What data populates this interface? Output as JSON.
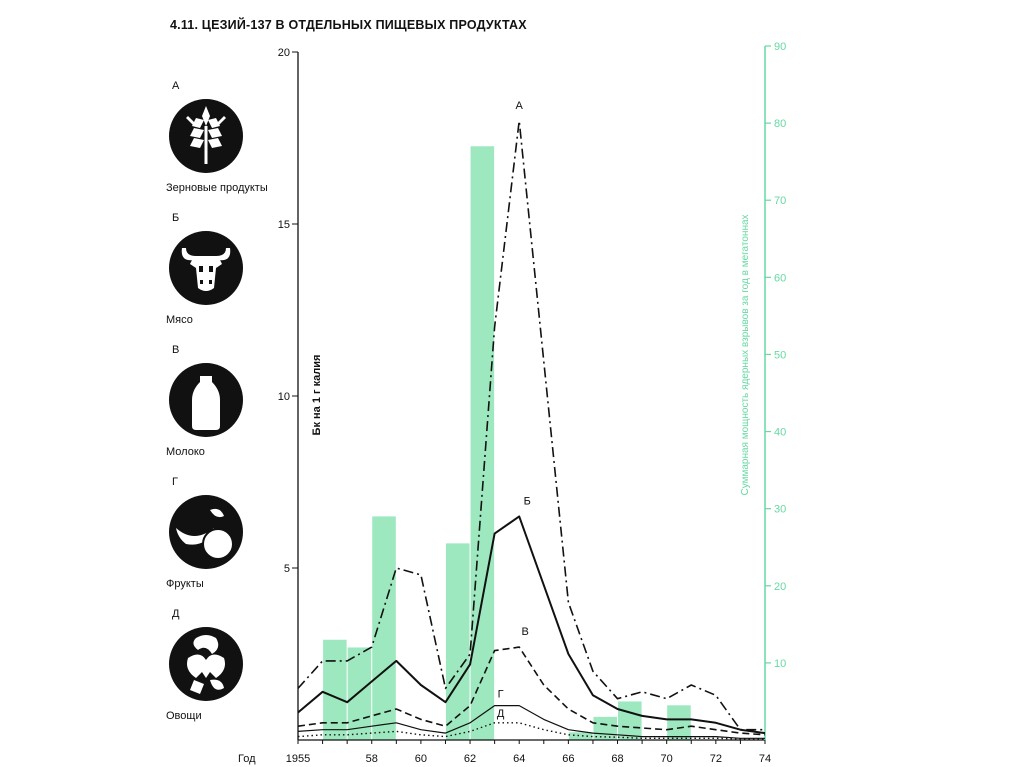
{
  "title": "4.11. ЦЕЗИЙ-137 В ОТДЕЛЬНЫХ ПИЩЕВЫХ ПРОДУКТАХ",
  "legend": [
    {
      "letter": "А",
      "label": "Зерновые продукты",
      "icon": "wheat-icon"
    },
    {
      "letter": "Б",
      "label": "Мясо",
      "icon": "cow-head-icon"
    },
    {
      "letter": "В",
      "label": "Молоко",
      "icon": "milk-bottle-icon"
    },
    {
      "letter": "Г",
      "label": "Фрукты",
      "icon": "fruit-icon"
    },
    {
      "letter": "Д",
      "label": "Овощи",
      "icon": "vegetables-icon"
    }
  ],
  "chart_data": {
    "type": "line",
    "ylabel": "Бк на 1 г калия",
    "y2label": "Суммарная мощность ядерных взрывов за год в мегатоннах",
    "xlabel": "Год",
    "ylim": [
      0,
      20
    ],
    "y2lim": [
      0,
      90
    ],
    "xlim": [
      1955,
      1974
    ],
    "x_ticks": [
      {
        "value": 1955,
        "label": "1955"
      },
      {
        "value": 1958,
        "label": "58"
      },
      {
        "value": 1960,
        "label": "60"
      },
      {
        "value": 1962,
        "label": "62"
      },
      {
        "value": 1964,
        "label": "64"
      },
      {
        "value": 1966,
        "label": "66"
      },
      {
        "value": 1968,
        "label": "68"
      },
      {
        "value": 1970,
        "label": "70"
      },
      {
        "value": 1972,
        "label": "72"
      },
      {
        "value": 1974,
        "label": "74"
      }
    ],
    "y_ticks": [
      5,
      10,
      15,
      20
    ],
    "y2_ticks": [
      10,
      20,
      30,
      40,
      50,
      60,
      70,
      80,
      90
    ],
    "bars": {
      "color": "#9ee8c0",
      "axis": "right",
      "data": [
        {
          "x": 1956.5,
          "value": 13
        },
        {
          "x": 1957.5,
          "value": 12
        },
        {
          "x": 1958.5,
          "value": 29
        },
        {
          "x": 1961.5,
          "value": 25.5
        },
        {
          "x": 1962.5,
          "value": 77
        },
        {
          "x": 1966.5,
          "value": 1
        },
        {
          "x": 1967.5,
          "value": 3
        },
        {
          "x": 1968.5,
          "value": 5
        },
        {
          "x": 1970.5,
          "value": 4.5
        }
      ]
    },
    "series": [
      {
        "name": "А",
        "style": "dashdot",
        "x": [
          1955,
          1956,
          1957,
          1958,
          1959,
          1960,
          1961,
          1962,
          1963,
          1964,
          1965,
          1966,
          1967,
          1968,
          1969,
          1970,
          1971,
          1972,
          1973,
          1974
        ],
        "y": [
          1.5,
          2.3,
          2.3,
          2.7,
          5.0,
          4.8,
          1.5,
          2.5,
          12.0,
          18.0,
          11.0,
          4.0,
          2.0,
          1.2,
          1.4,
          1.2,
          1.6,
          1.3,
          0.3,
          0.3
        ]
      },
      {
        "name": "Б",
        "style": "solid",
        "x": [
          1955,
          1956,
          1957,
          1958,
          1959,
          1960,
          1961,
          1962,
          1963,
          1964,
          1965,
          1966,
          1967,
          1968,
          1969,
          1970,
          1971,
          1972,
          1973,
          1974
        ],
        "y": [
          0.8,
          1.4,
          1.1,
          1.7,
          2.3,
          1.6,
          1.1,
          2.2,
          6.0,
          6.5,
          4.5,
          2.5,
          1.3,
          0.9,
          0.7,
          0.6,
          0.6,
          0.5,
          0.3,
          0.2
        ]
      },
      {
        "name": "В",
        "style": "dashed",
        "x": [
          1955,
          1956,
          1957,
          1958,
          1959,
          1960,
          1961,
          1962,
          1963,
          1964,
          1965,
          1966,
          1967,
          1968,
          1969,
          1970,
          1971,
          1972,
          1973,
          1974
        ],
        "y": [
          0.4,
          0.5,
          0.5,
          0.7,
          0.9,
          0.6,
          0.4,
          1.0,
          2.6,
          2.7,
          1.6,
          0.9,
          0.5,
          0.4,
          0.35,
          0.3,
          0.4,
          0.3,
          0.2,
          0.15
        ]
      },
      {
        "name": "Г",
        "style": "solid-thin",
        "x": [
          1955,
          1956,
          1957,
          1958,
          1959,
          1960,
          1961,
          1962,
          1963,
          1964,
          1965,
          1966,
          1967,
          1968,
          1969,
          1970,
          1971,
          1972,
          1973,
          1974
        ],
        "y": [
          0.25,
          0.3,
          0.3,
          0.4,
          0.5,
          0.3,
          0.2,
          0.5,
          1.0,
          1.0,
          0.6,
          0.3,
          0.2,
          0.15,
          0.1,
          0.1,
          0.1,
          0.1,
          0.05,
          0.05
        ]
      },
      {
        "name": "Д",
        "style": "dotted",
        "x": [
          1955,
          1956,
          1957,
          1958,
          1959,
          1960,
          1961,
          1962,
          1963,
          1964,
          1965,
          1966,
          1967,
          1968,
          1969,
          1970,
          1971,
          1972,
          1973,
          1974
        ],
        "y": [
          0.1,
          0.15,
          0.15,
          0.2,
          0.25,
          0.15,
          0.1,
          0.25,
          0.5,
          0.5,
          0.3,
          0.15,
          0.1,
          0.08,
          0.05,
          0.05,
          0.05,
          0.05,
          0.03,
          0.03
        ]
      }
    ]
  }
}
